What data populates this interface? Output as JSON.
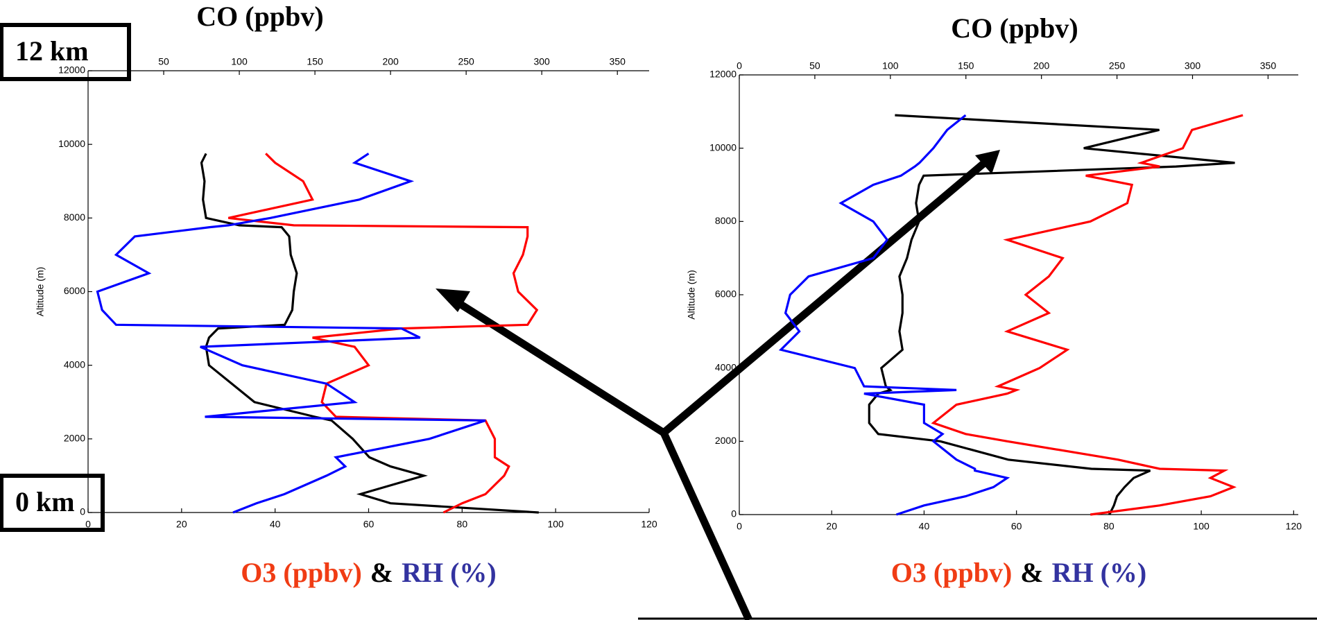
{
  "chart_data": [
    {
      "type": "line",
      "x2_label": "CO (ppbv)",
      "ylabel": "Altitude (m)",
      "xlabel": [
        {
          "text": "O3 (ppbv)",
          "color": "#f03c14"
        },
        {
          "text": "&",
          "color": "#000000"
        },
        {
          "text": "RH (%)",
          "color": "#3333a0"
        }
      ],
      "annotations": [
        "12 km",
        "0 km"
      ],
      "xlim": [
        0,
        120
      ],
      "xticks": [
        0,
        20,
        40,
        60,
        80,
        100,
        120
      ],
      "x2lim": [
        0,
        371
      ],
      "x2ticks": [
        50,
        100,
        150,
        200,
        250,
        300,
        350
      ],
      "ylim": [
        0,
        12000
      ],
      "yticks": [
        0,
        2000,
        4000,
        6000,
        8000,
        10000,
        12000
      ],
      "y": [
        0,
        250,
        500,
        1000,
        1250,
        1500,
        2000,
        2500,
        2600,
        3000,
        3500,
        4000,
        4500,
        4750,
        5000,
        5100,
        5500,
        6000,
        6500,
        7000,
        7500,
        7750,
        7800,
        8000,
        8500,
        9000,
        9500,
        9750
      ],
      "series": [
        {
          "axis": "x2",
          "color": "#000000",
          "values": [
            298,
            200,
            180,
            222,
            200,
            186,
            175,
            161,
            150,
            110,
            95,
            80,
            78,
            80,
            86,
            130,
            135,
            136,
            138,
            134,
            133,
            128,
            100,
            78,
            76,
            77,
            75,
            78
          ]
        },
        {
          "axis": "x",
          "color": "#ff0000",
          "values": [
            76,
            80,
            85,
            89,
            90,
            87,
            87,
            85,
            53,
            50,
            51,
            60,
            57,
            48,
            67,
            94,
            96,
            92,
            91,
            93,
            94,
            94,
            44,
            30,
            48,
            46,
            40,
            38
          ]
        },
        {
          "axis": "x",
          "color": "#0000ff",
          "values": [
            31,
            36,
            42,
            51,
            55,
            53,
            73,
            85,
            25,
            57,
            51,
            33,
            24,
            71,
            67,
            6,
            3,
            2,
            13,
            6,
            10,
            26,
            30,
            39,
            58,
            69,
            57,
            60
          ]
        }
      ]
    },
    {
      "type": "line",
      "x2_label": "CO (ppbv)",
      "ylabel": "Altitude (m)",
      "xlabel": [
        {
          "text": "O3 (ppbv)",
          "color": "#f03c14"
        },
        {
          "text": "&",
          "color": "#000000"
        },
        {
          "text": "RH (%)",
          "color": "#3333a0"
        }
      ],
      "xlim": [
        0,
        121
      ],
      "xticks": [
        0,
        20,
        40,
        60,
        80,
        100,
        120
      ],
      "x2lim": [
        0,
        370
      ],
      "x2ticks": [
        0,
        50,
        100,
        150,
        200,
        250,
        300,
        350
      ],
      "ylim": [
        0,
        12000
      ],
      "yticks": [
        0,
        2000,
        4000,
        6000,
        8000,
        10000,
        12000
      ],
      "y": [
        0,
        250,
        500,
        750,
        1000,
        1200,
        1250,
        1500,
        2000,
        2200,
        2500,
        3000,
        3300,
        3400,
        3500,
        4000,
        4500,
        5000,
        5500,
        6000,
        6500,
        7000,
        7500,
        8000,
        8500,
        9000,
        9250,
        9500,
        9600,
        10000,
        10500,
        10900
      ],
      "series": [
        {
          "axis": "x2",
          "color": "#000000",
          "values": [
            245,
            248,
            250,
            255,
            261,
            272,
            233,
            178,
            133,
            92,
            86,
            86,
            92,
            100,
            97,
            94,
            108,
            106,
            108,
            108,
            106,
            111,
            114,
            119,
            117,
            119,
            122,
            289,
            328,
            228,
            278,
            103
          ]
        },
        {
          "axis": "x",
          "color": "#ff0000",
          "values": [
            76,
            91,
            102,
            107,
            102,
            105,
            91,
            82,
            58,
            49,
            42,
            47,
            58,
            60,
            56,
            65,
            71,
            58,
            67,
            62,
            67,
            70,
            58,
            76,
            84,
            85,
            75,
            91,
            87,
            96,
            98,
            109
          ]
        },
        {
          "axis": "x",
          "color": "#0000ff",
          "values": [
            34,
            40,
            49,
            55,
            58,
            51,
            51,
            47,
            42,
            44,
            40,
            40,
            27,
            47,
            27,
            25,
            9,
            13,
            10,
            11,
            15,
            29,
            32,
            29,
            22,
            29,
            35,
            38,
            39,
            42,
            45,
            49
          ]
        }
      ]
    }
  ]
}
